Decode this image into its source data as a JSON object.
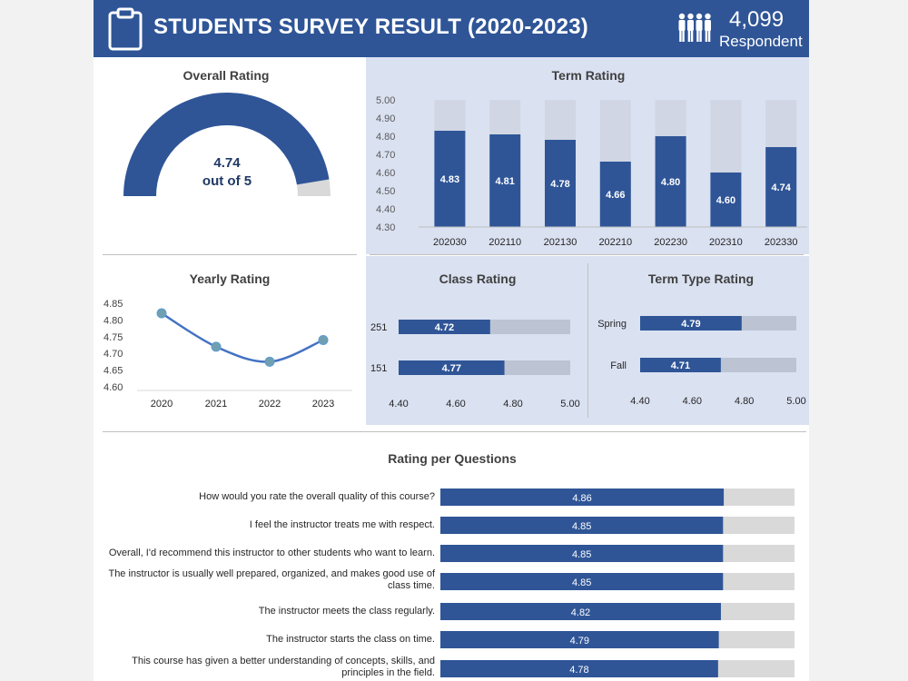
{
  "header": {
    "title": "STUDENTS SURVEY RESULT (2020-2023)",
    "respondent_count": "4,099",
    "respondent_label": "Respondent",
    "icons": [
      "clipboard-icon",
      "people-icon"
    ]
  },
  "colors": {
    "header": "#2f5597",
    "bar": "#2f5597",
    "track": "#d9d9d9",
    "panel": "#dae1f1",
    "line": "#4472c4",
    "marker": "#70a0b0"
  },
  "chart_data": [
    {
      "id": "overall",
      "type": "gauge",
      "title": "Overall Rating",
      "value": 4.74,
      "max": 5,
      "value_label": "4.74",
      "sub_label": "out of 5"
    },
    {
      "id": "term",
      "type": "bar",
      "title": "Term Rating",
      "categories": [
        "202030",
        "202110",
        "202130",
        "202210",
        "202230",
        "202310",
        "202330"
      ],
      "values": [
        4.83,
        4.81,
        4.78,
        4.66,
        4.8,
        4.6,
        4.74
      ],
      "value_labels": [
        "4.83",
        "4.81",
        "4.78",
        "4.66",
        "4.80",
        "4.60",
        "4.74"
      ],
      "ylim": [
        4.3,
        5.0
      ],
      "yticks": [
        "5.00",
        "4.90",
        "4.80",
        "4.70",
        "4.60",
        "4.50",
        "4.40",
        "4.30"
      ]
    },
    {
      "id": "yearly",
      "type": "line",
      "title": "Yearly Rating",
      "x": [
        "2020",
        "2021",
        "2022",
        "2023"
      ],
      "values": [
        4.82,
        4.72,
        4.675,
        4.74
      ],
      "ylim": [
        4.6,
        4.85
      ],
      "yticks": [
        "4.85",
        "4.80",
        "4.75",
        "4.70",
        "4.65",
        "4.60"
      ]
    },
    {
      "id": "class",
      "type": "bar",
      "orientation": "horizontal",
      "title": "Class Rating",
      "categories": [
        "251",
        "151"
      ],
      "values": [
        4.72,
        4.77
      ],
      "value_labels": [
        "4.72",
        "4.77"
      ],
      "xlim": [
        4.4,
        5.0
      ],
      "xticks": [
        "4.40",
        "4.60",
        "4.80",
        "5.00"
      ]
    },
    {
      "id": "termtype",
      "type": "bar",
      "orientation": "horizontal",
      "title": "Term Type Rating",
      "categories": [
        "Spring",
        "Fall"
      ],
      "values": [
        4.79,
        4.71
      ],
      "value_labels": [
        "4.79",
        "4.71"
      ],
      "xlim": [
        4.4,
        5.0
      ],
      "xticks": [
        "4.40",
        "4.60",
        "4.80",
        "5.00"
      ]
    },
    {
      "id": "questions",
      "type": "bar",
      "orientation": "horizontal",
      "title": "Rating per Questions",
      "xlim": [
        0,
        5
      ],
      "items": [
        {
          "label": "How would you rate the overall quality of this course?",
          "value": 4.86,
          "value_label": "4.86"
        },
        {
          "label": "I feel the instructor treats me with respect.",
          "value": 4.85,
          "value_label": "4.85"
        },
        {
          "label": "Overall, I'd recommend this instructor to other students who want to learn.",
          "value": 4.85,
          "value_label": "4.85"
        },
        {
          "label": "The instructor is usually well prepared, organized, and makes good use of class time.",
          "value": 4.85,
          "value_label": "4.85"
        },
        {
          "label": "The instructor meets the class regularly.",
          "value": 4.82,
          "value_label": "4.82"
        },
        {
          "label": "The instructor starts the class on time.",
          "value": 4.79,
          "value_label": "4.79"
        },
        {
          "label": "This course has given a better understanding of concepts, skills, and principles in the field.",
          "value": 4.78,
          "value_label": "4.78"
        }
      ]
    }
  ]
}
